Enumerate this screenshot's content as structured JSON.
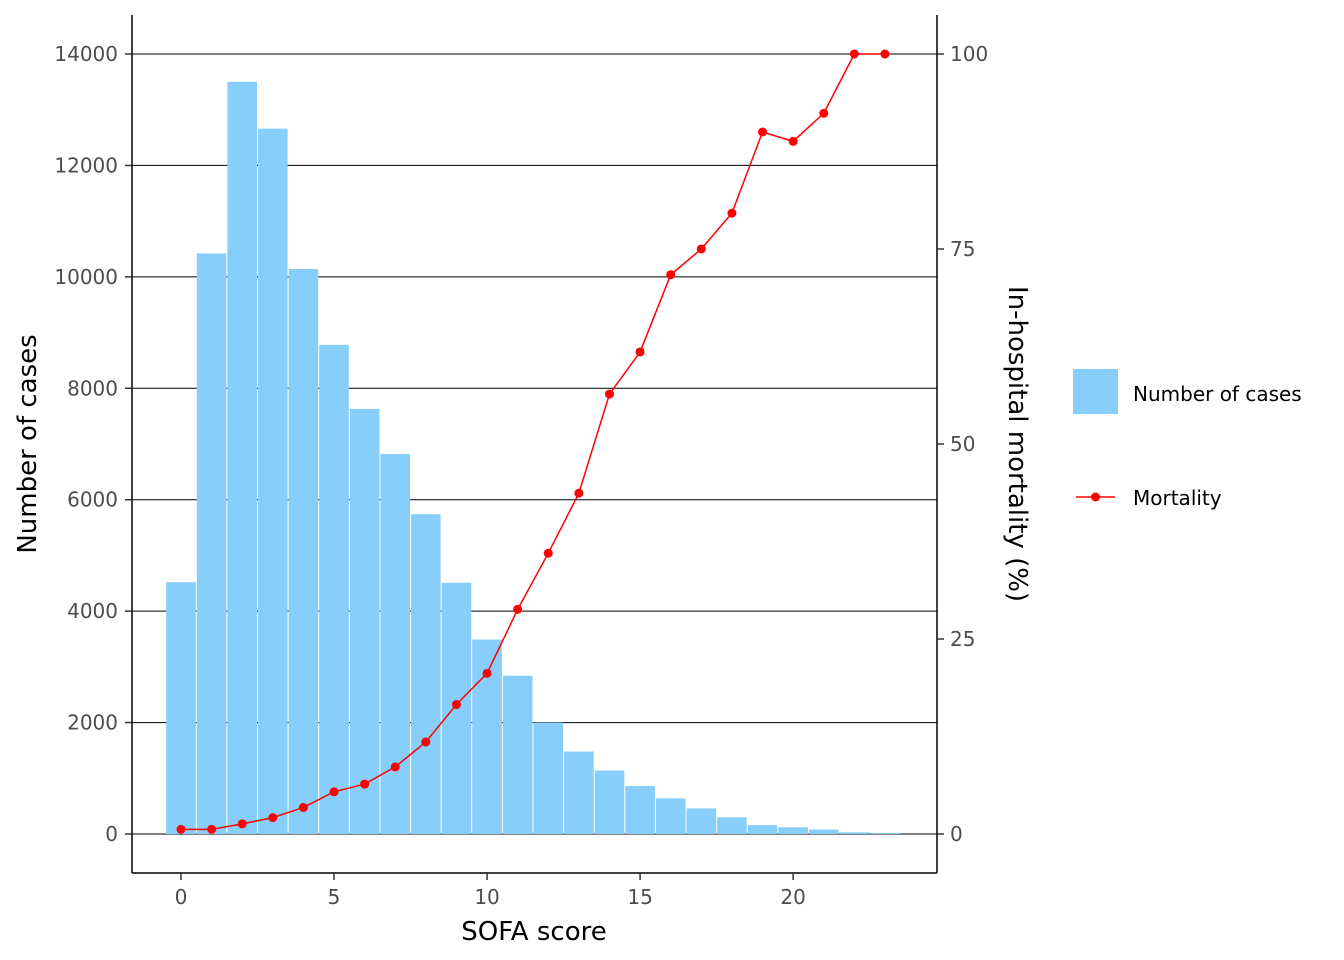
{
  "chart_data": {
    "type": "bar",
    "xlabel": "SOFA score",
    "ylabel": "Number of cases",
    "y2label": "In-hospital mortality (%)",
    "xlim": [
      -1.6,
      24.7
    ],
    "ylim": [
      -700,
      14700
    ],
    "y2lim": [
      -5,
      105
    ],
    "x_ticks": [
      0,
      5,
      10,
      15,
      20
    ],
    "y_ticks": [
      0,
      2000,
      4000,
      6000,
      8000,
      10000,
      12000,
      14000
    ],
    "y2_ticks": [
      0,
      25,
      50,
      75,
      100
    ],
    "grid": "horizontal major lines",
    "legend_position": "right",
    "series": [
      {
        "name": "Number of cases",
        "type": "bar",
        "axis": "left",
        "color": "#87CEFA",
        "x": [
          0,
          1,
          2,
          3,
          4,
          5,
          6,
          7,
          8,
          9,
          10,
          11,
          12,
          13,
          14,
          15,
          16,
          17,
          18,
          19,
          20,
          21,
          22,
          23
        ],
        "values": [
          4520,
          10420,
          13500,
          12660,
          10140,
          8780,
          7630,
          6820,
          5740,
          4510,
          3490,
          2840,
          2000,
          1480,
          1140,
          860,
          640,
          460,
          300,
          160,
          120,
          80,
          30,
          20
        ]
      },
      {
        "name": "Mortality",
        "type": "line",
        "axis": "right",
        "color": "#FF0000",
        "x": [
          0,
          1,
          2,
          3,
          4,
          5,
          6,
          7,
          8,
          9,
          10,
          11,
          12,
          13,
          14,
          15,
          16,
          17,
          18,
          19,
          20,
          21,
          22,
          23
        ],
        "values": [
          0.6,
          0.6,
          1.3,
          2.1,
          3.4,
          5.4,
          6.4,
          8.6,
          11.8,
          16.6,
          20.6,
          28.8,
          36.0,
          43.7,
          56.4,
          61.8,
          71.7,
          75.0,
          79.6,
          90.0,
          88.8,
          92.4,
          100,
          100
        ]
      }
    ]
  }
}
